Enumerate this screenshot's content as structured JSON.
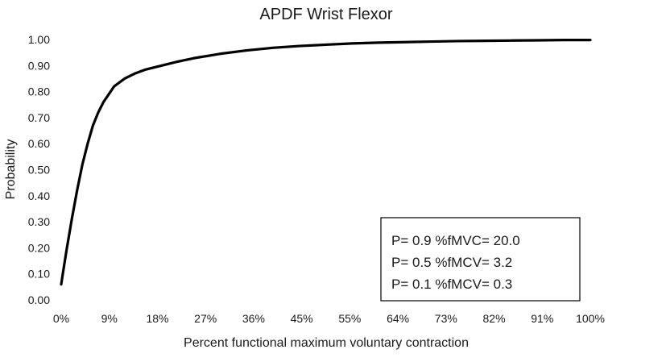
{
  "chart_data": {
    "type": "line",
    "title": "APDF Wrist Flexor",
    "xlabel": "Percent functional maximum voluntary  contraction",
    "ylabel": "Probability",
    "x_tick_labels": [
      "0%",
      "9%",
      "18%",
      "27%",
      "36%",
      "45%",
      "55%",
      "64%",
      "73%",
      "82%",
      "91%",
      "100%"
    ],
    "y_tick_labels": [
      "0.00",
      "0.10",
      "0.20",
      "0.30",
      "0.40",
      "0.50",
      "0.60",
      "0.70",
      "0.80",
      "0.90",
      "1.00"
    ],
    "xlim": [
      0,
      100
    ],
    "ylim": [
      0,
      1
    ],
    "grid": false,
    "series": [
      {
        "color": "#000000",
        "x": [
          0,
          0.3,
          1,
          2,
          3,
          4,
          5,
          6,
          7,
          8,
          9,
          10,
          12,
          14,
          16,
          18,
          20,
          22,
          25,
          30,
          35,
          40,
          45,
          50,
          55,
          60,
          65,
          70,
          75,
          80,
          85,
          90,
          95,
          100
        ],
        "y": [
          0.06,
          0.1,
          0.19,
          0.31,
          0.42,
          0.52,
          0.6,
          0.67,
          0.72,
          0.76,
          0.79,
          0.82,
          0.85,
          0.87,
          0.885,
          0.895,
          0.905,
          0.915,
          0.928,
          0.945,
          0.958,
          0.968,
          0.975,
          0.98,
          0.985,
          0.988,
          0.99,
          0.992,
          0.994,
          0.995,
          0.996,
          0.997,
          0.998,
          0.998
        ]
      }
    ],
    "annotations": [
      "P= 0.9 %fMVC= 20.0",
      "P= 0.5 %fMCV= 3.2",
      "P= 0.1 %fMCV=  0.3"
    ]
  }
}
